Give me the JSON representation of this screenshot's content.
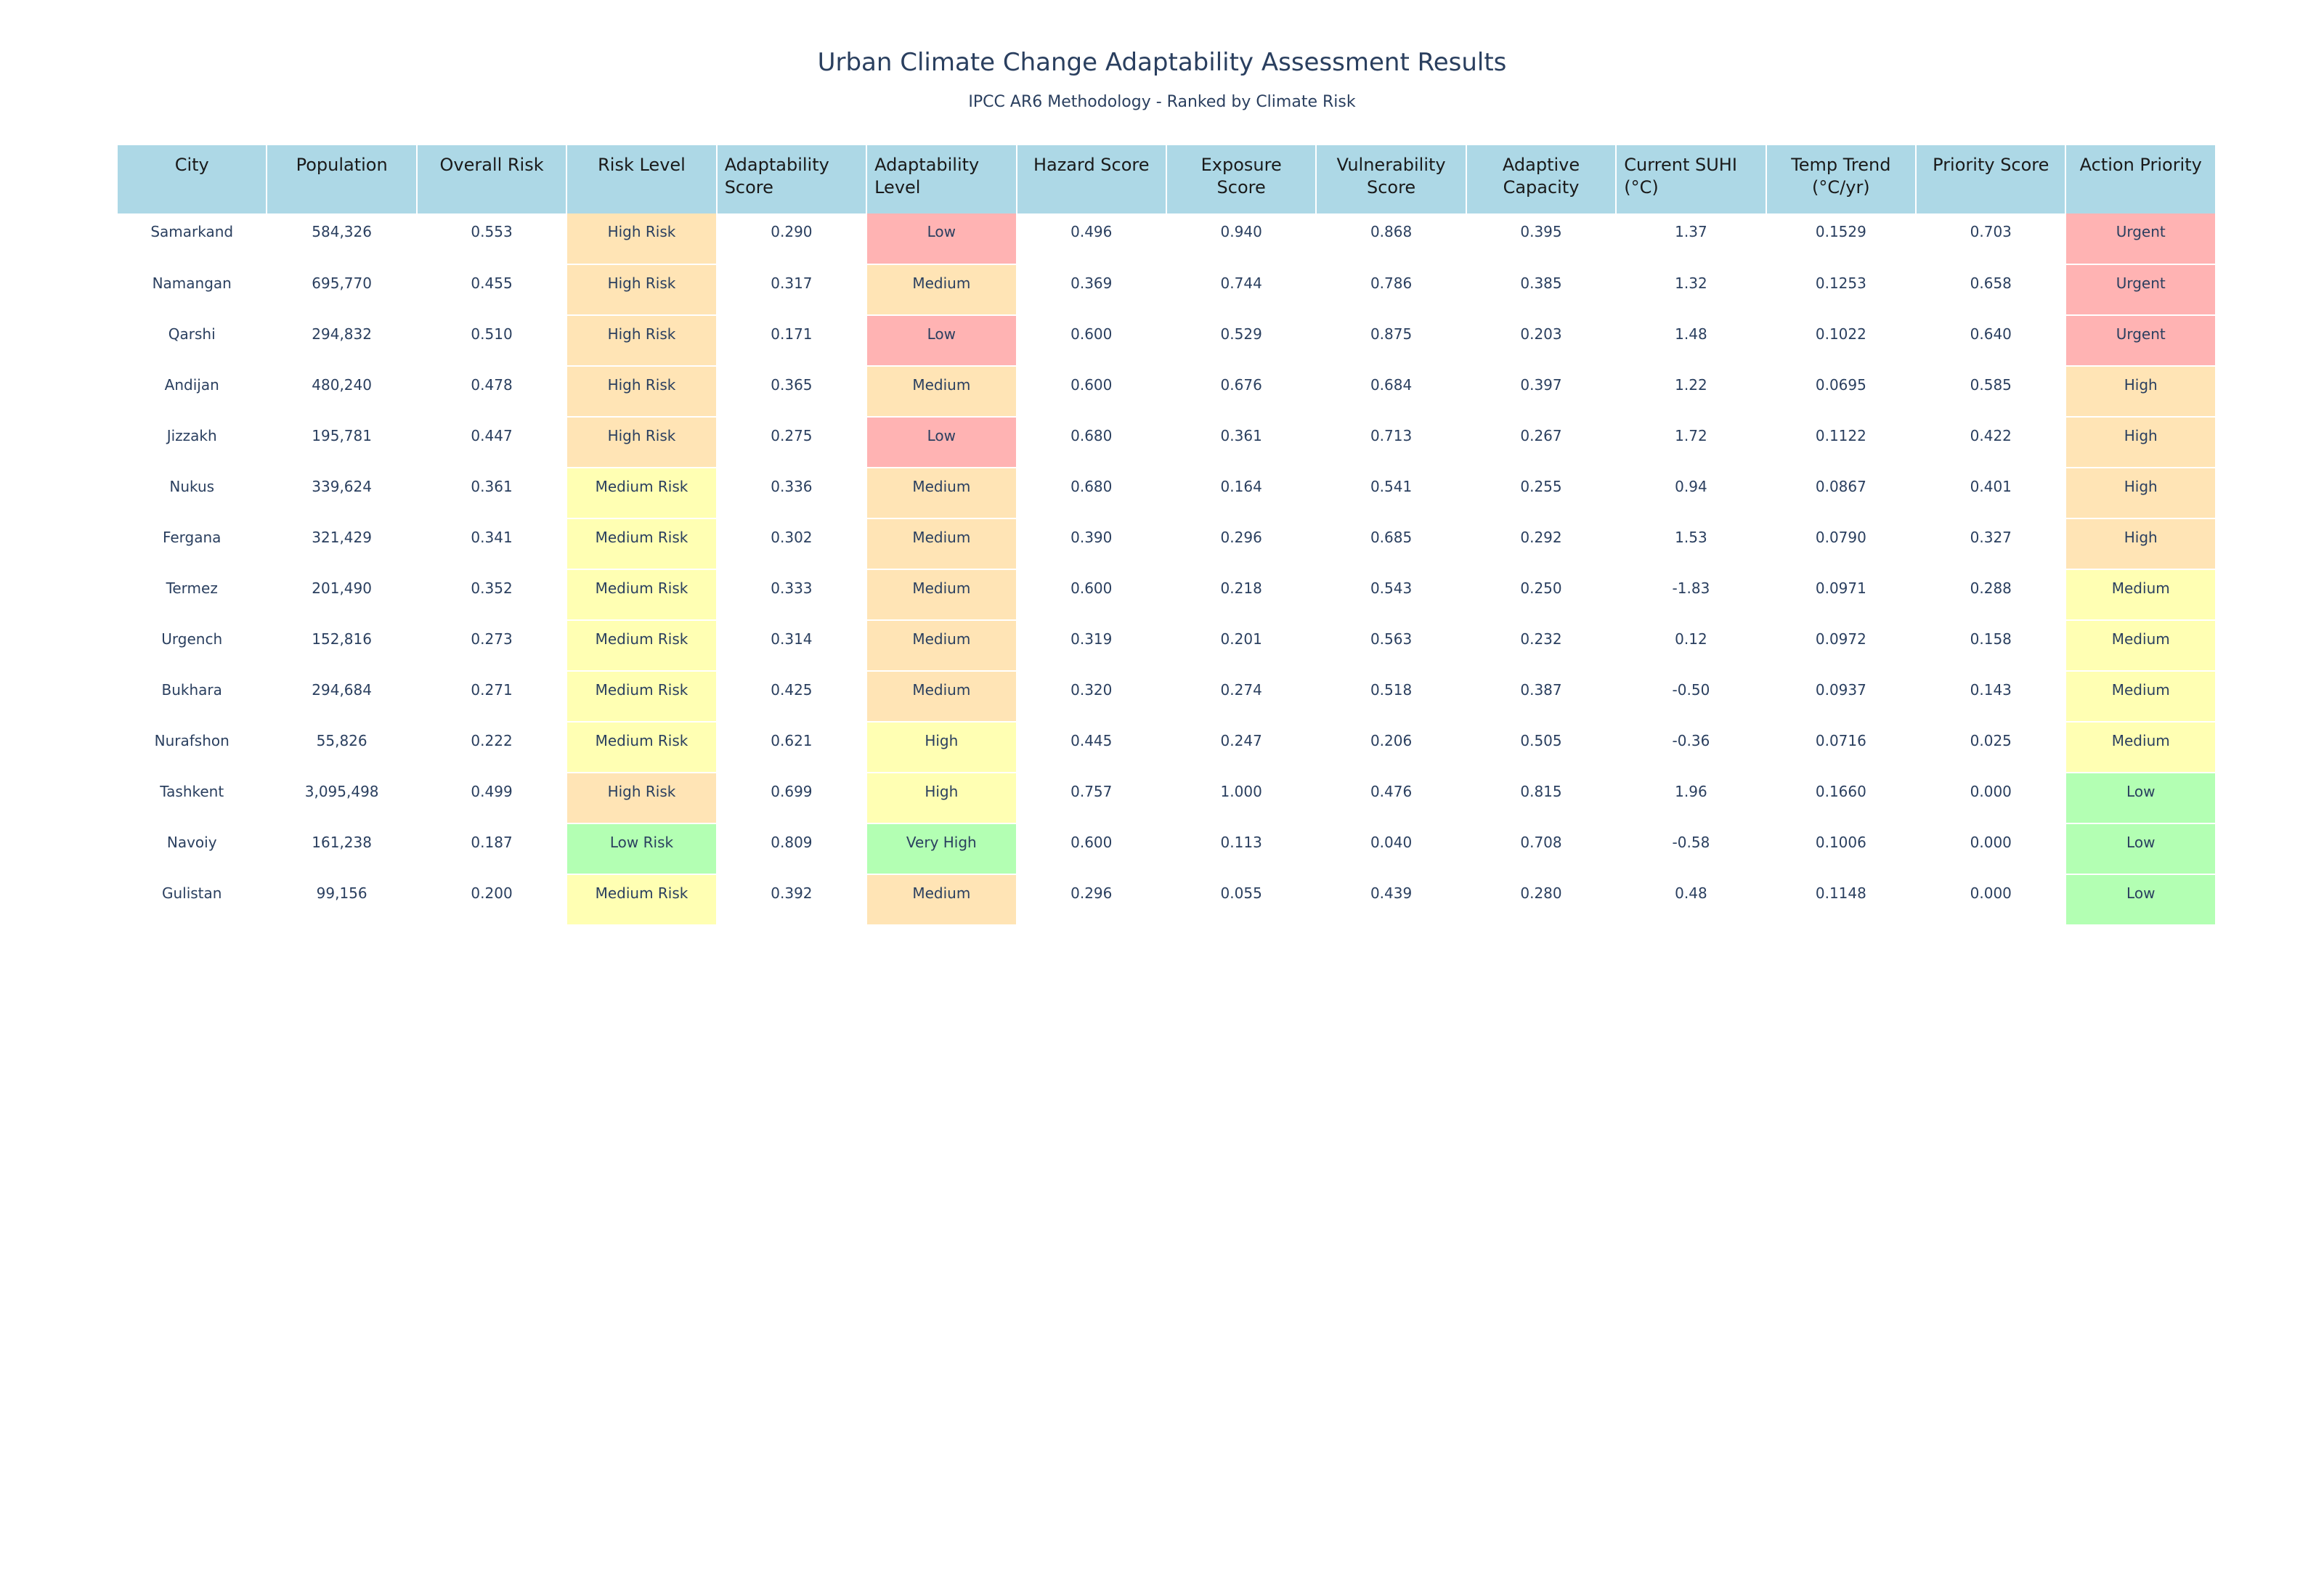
{
  "chart_data": {
    "type": "table",
    "title": "Urban Climate Change Adaptability Assessment Results",
    "subtitle": "IPCC AR6 Methodology - Ranked by Climate Risk",
    "columns": [
      {
        "label": "City",
        "align": "center"
      },
      {
        "label": "Population",
        "align": "center"
      },
      {
        "label": "Overall Risk",
        "align": "center"
      },
      {
        "label": "Risk Level",
        "align": "center"
      },
      {
        "label": "Adaptability Score",
        "align": "left"
      },
      {
        "label": "Adaptability Level",
        "align": "left"
      },
      {
        "label": "Hazard Score",
        "align": "center"
      },
      {
        "label": "Exposure Score",
        "align": "center"
      },
      {
        "label": "Vulnerability Score",
        "align": "center"
      },
      {
        "label": "Adaptive Capacity",
        "align": "center"
      },
      {
        "label": "Current SUHI (°C)",
        "align": "left"
      },
      {
        "label": "Temp Trend (°C/yr)",
        "align": "center"
      },
      {
        "label": "Priority Score",
        "align": "center"
      },
      {
        "label": "Action Priority",
        "align": "center"
      }
    ],
    "rows": [
      [
        "Samarkand",
        "584,326",
        "0.553",
        "High Risk",
        "0.290",
        "Low",
        "0.496",
        "0.940",
        "0.868",
        "0.395",
        "1.37",
        "0.1529",
        "0.703",
        "Urgent"
      ],
      [
        "Namangan",
        "695,770",
        "0.455",
        "High Risk",
        "0.317",
        "Medium",
        "0.369",
        "0.744",
        "0.786",
        "0.385",
        "1.32",
        "0.1253",
        "0.658",
        "Urgent"
      ],
      [
        "Qarshi",
        "294,832",
        "0.510",
        "High Risk",
        "0.171",
        "Low",
        "0.600",
        "0.529",
        "0.875",
        "0.203",
        "1.48",
        "0.1022",
        "0.640",
        "Urgent"
      ],
      [
        "Andijan",
        "480,240",
        "0.478",
        "High Risk",
        "0.365",
        "Medium",
        "0.600",
        "0.676",
        "0.684",
        "0.397",
        "1.22",
        "0.0695",
        "0.585",
        "High"
      ],
      [
        "Jizzakh",
        "195,781",
        "0.447",
        "High Risk",
        "0.275",
        "Low",
        "0.680",
        "0.361",
        "0.713",
        "0.267",
        "1.72",
        "0.1122",
        "0.422",
        "High"
      ],
      [
        "Nukus",
        "339,624",
        "0.361",
        "Medium Risk",
        "0.336",
        "Medium",
        "0.680",
        "0.164",
        "0.541",
        "0.255",
        "0.94",
        "0.0867",
        "0.401",
        "High"
      ],
      [
        "Fergana",
        "321,429",
        "0.341",
        "Medium Risk",
        "0.302",
        "Medium",
        "0.390",
        "0.296",
        "0.685",
        "0.292",
        "1.53",
        "0.0790",
        "0.327",
        "High"
      ],
      [
        "Termez",
        "201,490",
        "0.352",
        "Medium Risk",
        "0.333",
        "Medium",
        "0.600",
        "0.218",
        "0.543",
        "0.250",
        "-1.83",
        "0.0971",
        "0.288",
        "Medium"
      ],
      [
        "Urgench",
        "152,816",
        "0.273",
        "Medium Risk",
        "0.314",
        "Medium",
        "0.319",
        "0.201",
        "0.563",
        "0.232",
        "0.12",
        "0.0972",
        "0.158",
        "Medium"
      ],
      [
        "Bukhara",
        "294,684",
        "0.271",
        "Medium Risk",
        "0.425",
        "Medium",
        "0.320",
        "0.274",
        "0.518",
        "0.387",
        "-0.50",
        "0.0937",
        "0.143",
        "Medium"
      ],
      [
        "Nurafshon",
        "55,826",
        "0.222",
        "Medium Risk",
        "0.621",
        "High",
        "0.445",
        "0.247",
        "0.206",
        "0.505",
        "-0.36",
        "0.0716",
        "0.025",
        "Medium"
      ],
      [
        "Tashkent",
        "3,095,498",
        "0.499",
        "High Risk",
        "0.699",
        "High",
        "0.757",
        "1.000",
        "0.476",
        "0.815",
        "1.96",
        "0.1660",
        "0.000",
        "Low"
      ],
      [
        "Navoiy",
        "161,238",
        "0.187",
        "Low Risk",
        "0.809",
        "Very High",
        "0.600",
        "0.113",
        "0.040",
        "0.708",
        "-0.58",
        "0.1006",
        "0.000",
        "Low"
      ],
      [
        "Gulistan",
        "99,156",
        "0.200",
        "Medium Risk",
        "0.392",
        "Medium",
        "0.296",
        "0.055",
        "0.439",
        "0.280",
        "0.48",
        "0.1148",
        "0.000",
        "Low"
      ]
    ],
    "colored_columns": {
      "Risk Level": {
        "High Risk": "#ffe4b5",
        "Medium Risk": "#ffffb3",
        "Low Risk": "#b3ffb3"
      },
      "Adaptability Level": {
        "Low": "#ffb3b3",
        "Medium": "#ffe4b5",
        "High": "#ffffb3",
        "Very High": "#b3ffb3"
      },
      "Action Priority": {
        "Urgent": "#ffb3b3",
        "High": "#ffe4b5",
        "Medium": "#ffffb3",
        "Low": "#b3ffb3"
      }
    },
    "colors": {
      "header_fill": "#add8e6",
      "cell_fill": "#ffffff",
      "text": "#2a3f5f"
    }
  }
}
